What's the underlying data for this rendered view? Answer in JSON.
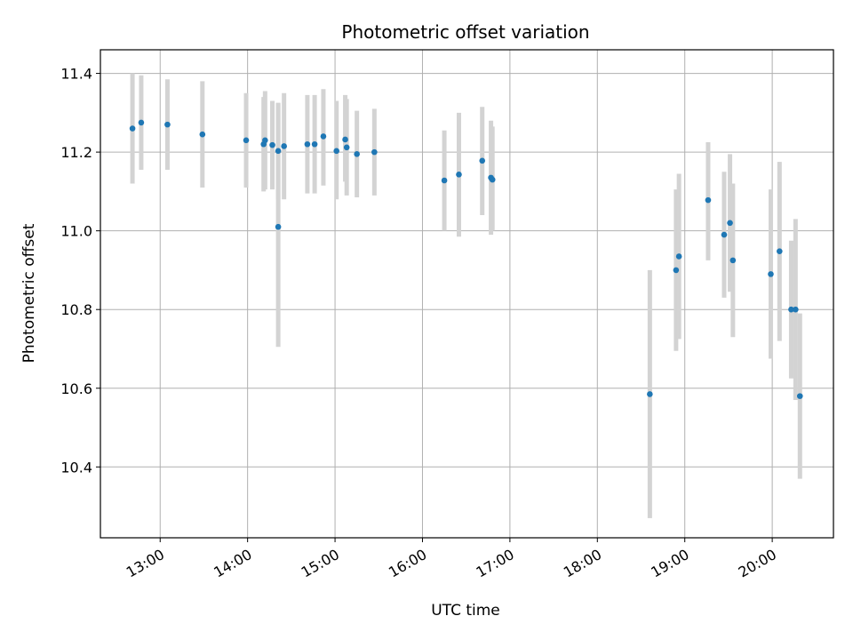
{
  "chart_data": {
    "type": "scatter",
    "title": "Photometric offset variation",
    "xlabel": "UTC time",
    "ylabel": "Photometric offset",
    "x_unit": "time of day (HH:MM)",
    "xlim": [
      "12:19",
      "20:42"
    ],
    "ylim": [
      10.22,
      11.46
    ],
    "xticks": [
      "13:00",
      "14:00",
      "15:00",
      "16:00",
      "17:00",
      "18:00",
      "19:00",
      "20:00"
    ],
    "yticks": [
      10.4,
      10.6,
      10.8,
      11.0,
      11.2,
      11.4
    ],
    "ytick_labels": [
      "10.4",
      "10.6",
      "10.8",
      "11.0",
      "11.2",
      "11.4"
    ],
    "grid": true,
    "colors": {
      "point": "#1f77b4",
      "errorbar": "#d3d3d3",
      "grid": "#b0b0b0"
    },
    "points": [
      {
        "x": "12:41",
        "y": 11.26,
        "lo": 11.12,
        "hi": 11.4
      },
      {
        "x": "12:47",
        "y": 11.275,
        "lo": 11.155,
        "hi": 11.395
      },
      {
        "x": "13:05",
        "y": 11.27,
        "lo": 11.155,
        "hi": 11.385
      },
      {
        "x": "13:29",
        "y": 11.245,
        "lo": 11.11,
        "hi": 11.38
      },
      {
        "x": "13:59",
        "y": 11.23,
        "lo": 11.11,
        "hi": 11.35
      },
      {
        "x": "14:11",
        "y": 11.22,
        "lo": 11.1,
        "hi": 11.34
      },
      {
        "x": "14:12",
        "y": 11.23,
        "lo": 11.105,
        "hi": 11.355
      },
      {
        "x": "14:17",
        "y": 11.218,
        "lo": 11.105,
        "hi": 11.33
      },
      {
        "x": "14:21",
        "y": 11.203,
        "lo": 11.08,
        "hi": 11.325
      },
      {
        "x": "14:21",
        "y": 11.01,
        "lo": 10.705,
        "hi": 11.325
      },
      {
        "x": "14:25",
        "y": 11.215,
        "lo": 11.08,
        "hi": 11.35
      },
      {
        "x": "14:41",
        "y": 11.22,
        "lo": 11.095,
        "hi": 11.345
      },
      {
        "x": "14:46",
        "y": 11.22,
        "lo": 11.095,
        "hi": 11.345
      },
      {
        "x": "14:52",
        "y": 11.24,
        "lo": 11.115,
        "hi": 11.36
      },
      {
        "x": "15:01",
        "y": 11.203,
        "lo": 11.08,
        "hi": 11.33
      },
      {
        "x": "15:07",
        "y": 11.232,
        "lo": 11.125,
        "hi": 11.345
      },
      {
        "x": "15:08",
        "y": 11.212,
        "lo": 11.09,
        "hi": 11.335
      },
      {
        "x": "15:15",
        "y": 11.195,
        "lo": 11.085,
        "hi": 11.305
      },
      {
        "x": "15:27",
        "y": 11.2,
        "lo": 11.09,
        "hi": 11.31
      },
      {
        "x": "16:15",
        "y": 11.128,
        "lo": 11.0,
        "hi": 11.255
      },
      {
        "x": "16:25",
        "y": 11.143,
        "lo": 10.985,
        "hi": 11.3
      },
      {
        "x": "16:41",
        "y": 11.178,
        "lo": 11.04,
        "hi": 11.315
      },
      {
        "x": "16:47",
        "y": 11.135,
        "lo": 10.99,
        "hi": 11.28
      },
      {
        "x": "16:48",
        "y": 11.13,
        "lo": 11.0,
        "hi": 11.265
      },
      {
        "x": "18:36",
        "y": 10.585,
        "lo": 10.27,
        "hi": 10.9
      },
      {
        "x": "18:54",
        "y": 10.9,
        "lo": 10.695,
        "hi": 11.105
      },
      {
        "x": "18:56",
        "y": 10.935,
        "lo": 10.725,
        "hi": 11.145
      },
      {
        "x": "19:16",
        "y": 11.078,
        "lo": 10.925,
        "hi": 11.225
      },
      {
        "x": "19:27",
        "y": 10.99,
        "lo": 10.83,
        "hi": 11.15
      },
      {
        "x": "19:31",
        "y": 11.02,
        "lo": 10.845,
        "hi": 11.195
      },
      {
        "x": "19:33",
        "y": 10.925,
        "lo": 10.73,
        "hi": 11.12
      },
      {
        "x": "19:59",
        "y": 10.89,
        "lo": 10.675,
        "hi": 11.105
      },
      {
        "x": "20:05",
        "y": 10.948,
        "lo": 10.72,
        "hi": 11.175
      },
      {
        "x": "20:13",
        "y": 10.8,
        "lo": 10.625,
        "hi": 10.975
      },
      {
        "x": "20:16",
        "y": 10.8,
        "lo": 10.57,
        "hi": 11.03
      },
      {
        "x": "20:19",
        "y": 10.58,
        "lo": 10.37,
        "hi": 10.79
      }
    ]
  }
}
